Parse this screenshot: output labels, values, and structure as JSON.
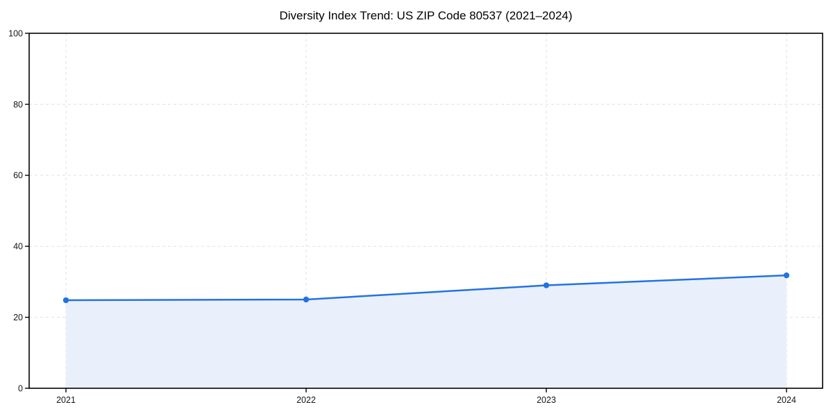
{
  "chart_data": {
    "type": "area",
    "title": "Diversity Index Trend: US ZIP Code 80537 (2021–2024)",
    "categories": [
      "2021",
      "2022",
      "2023",
      "2024"
    ],
    "values": [
      24.8,
      25.0,
      29.0,
      31.8
    ],
    "xlabel": "",
    "ylabel": "",
    "ylim": [
      0,
      100
    ],
    "yticks": [
      0,
      20,
      40,
      60,
      80,
      100
    ],
    "grid": true,
    "grid_style": "dashed",
    "legend_position": "none",
    "colors": {
      "line": "#2272e3",
      "marker": "#2272e3",
      "area_fill": "#e9f0fc",
      "gridline": "#dedede",
      "spine": "#000000"
    }
  }
}
